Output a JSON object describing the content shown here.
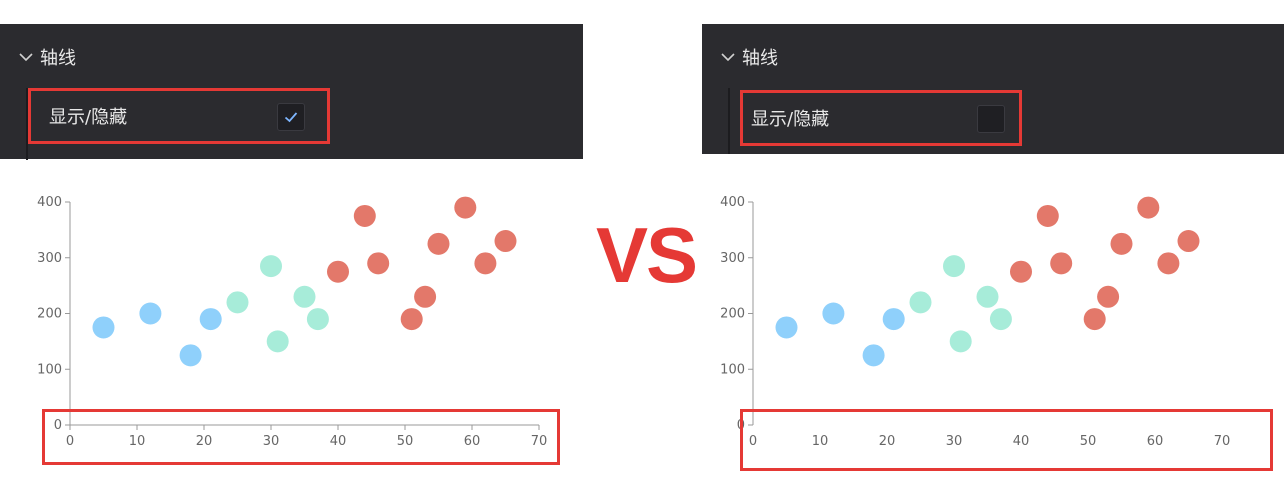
{
  "left_panel": {
    "section_title": "轴线",
    "option_label": "显示/隐藏",
    "checked": true
  },
  "right_panel": {
    "section_title": "轴线",
    "option_label": "显示/隐藏",
    "checked": false
  },
  "vs_label": "VS",
  "colors": {
    "panel_bg": "#2b2b2f",
    "highlight": "#e53935",
    "blue": "#8fd0fb",
    "teal": "#a7ecd9",
    "red": "#e3786a",
    "check": "#7eb6ff"
  },
  "chart_data": [
    {
      "type": "scatter",
      "title": "",
      "xlabel": "",
      "ylabel": "",
      "xlim": [
        0,
        70
      ],
      "ylim": [
        0,
        400
      ],
      "x_ticks": [
        0,
        10,
        20,
        30,
        40,
        50,
        60,
        70
      ],
      "y_ticks": [
        0,
        100,
        200,
        300,
        400
      ],
      "x_axis_visible": true,
      "series": [
        {
          "color": "#8fd0fb",
          "points": [
            [
              5,
              175
            ],
            [
              12,
              200
            ],
            [
              18,
              125
            ],
            [
              21,
              190
            ]
          ]
        },
        {
          "color": "#a7ecd9",
          "points": [
            [
              25,
              220
            ],
            [
              30,
              285
            ],
            [
              31,
              150
            ],
            [
              35,
              230
            ],
            [
              37,
              190
            ]
          ]
        },
        {
          "color": "#e3786a",
          "points": [
            [
              40,
              275
            ],
            [
              44,
              375
            ],
            [
              46,
              290
            ],
            [
              51,
              190
            ],
            [
              53,
              230
            ],
            [
              55,
              325
            ],
            [
              59,
              390
            ],
            [
              62,
              290
            ],
            [
              65,
              330
            ]
          ]
        }
      ]
    },
    {
      "type": "scatter",
      "title": "",
      "xlabel": "",
      "ylabel": "",
      "xlim": [
        0,
        70
      ],
      "ylim": [
        0,
        400
      ],
      "x_ticks": [
        0,
        10,
        20,
        30,
        40,
        50,
        60,
        70
      ],
      "y_ticks": [
        0,
        100,
        200,
        300,
        400
      ],
      "x_axis_visible": false,
      "series": [
        {
          "color": "#8fd0fb",
          "points": [
            [
              5,
              175
            ],
            [
              12,
              200
            ],
            [
              18,
              125
            ],
            [
              21,
              190
            ]
          ]
        },
        {
          "color": "#a7ecd9",
          "points": [
            [
              25,
              220
            ],
            [
              30,
              285
            ],
            [
              31,
              150
            ],
            [
              35,
              230
            ],
            [
              37,
              190
            ]
          ]
        },
        {
          "color": "#e3786a",
          "points": [
            [
              40,
              275
            ],
            [
              44,
              375
            ],
            [
              46,
              290
            ],
            [
              51,
              190
            ],
            [
              53,
              230
            ],
            [
              55,
              325
            ],
            [
              59,
              390
            ],
            [
              62,
              290
            ],
            [
              65,
              330
            ]
          ]
        }
      ]
    }
  ]
}
